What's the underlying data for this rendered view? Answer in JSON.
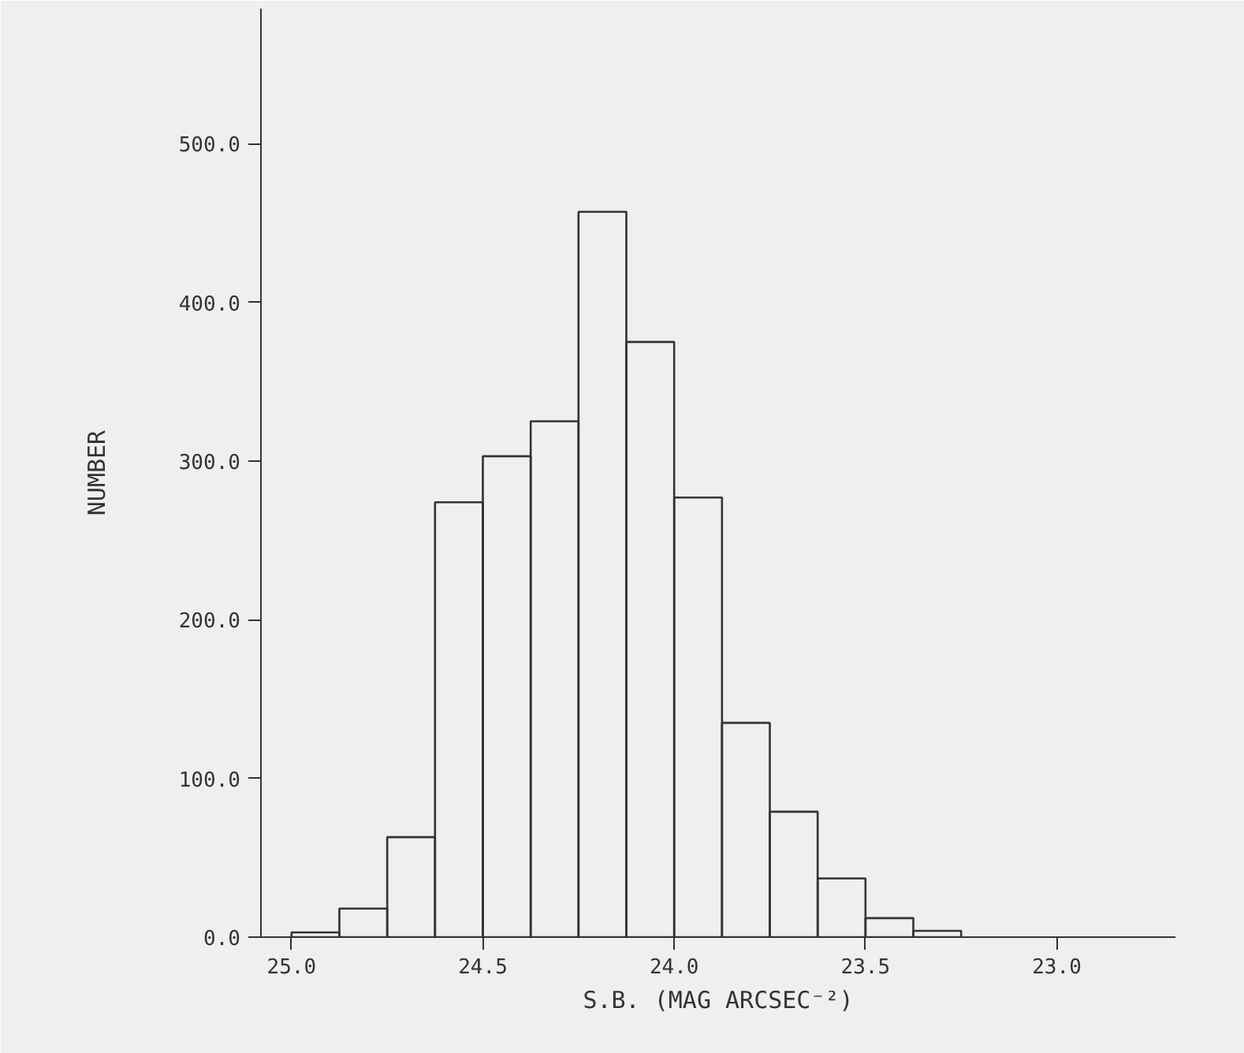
{
  "chart_data": {
    "type": "histogram",
    "xlabel": "S.B. (MAG ARCSEC⁻²)",
    "ylabel": "NUMBER",
    "bins": [
      25.0,
      24.875,
      24.75,
      24.625,
      24.5,
      24.375,
      24.25,
      24.125,
      24.0,
      23.875,
      23.75,
      23.625,
      23.5,
      23.375,
      23.25
    ],
    "values": [
      3,
      18,
      63,
      274,
      303,
      325,
      457,
      375,
      277,
      135,
      79,
      37,
      12,
      4
    ],
    "color": "#333333",
    "xlim": [
      25.08,
      22.69
    ],
    "ylim": [
      0,
      585
    ],
    "xticks": [
      {
        "value": 25.0,
        "label": "25.0"
      },
      {
        "value": 24.5,
        "label": "24.5"
      },
      {
        "value": 24.0,
        "label": "24.0"
      },
      {
        "value": 23.5,
        "label": "23.5"
      },
      {
        "value": 23.0,
        "label": "23.0"
      }
    ],
    "yticks": [
      {
        "value": 0,
        "label": "0.0"
      },
      {
        "value": 100,
        "label": "100.0"
      },
      {
        "value": 200,
        "label": "200.0"
      },
      {
        "value": 300,
        "label": "300.0"
      },
      {
        "value": 400,
        "label": "400.0"
      },
      {
        "value": 500,
        "label": "500.0"
      }
    ],
    "grid": false
  }
}
